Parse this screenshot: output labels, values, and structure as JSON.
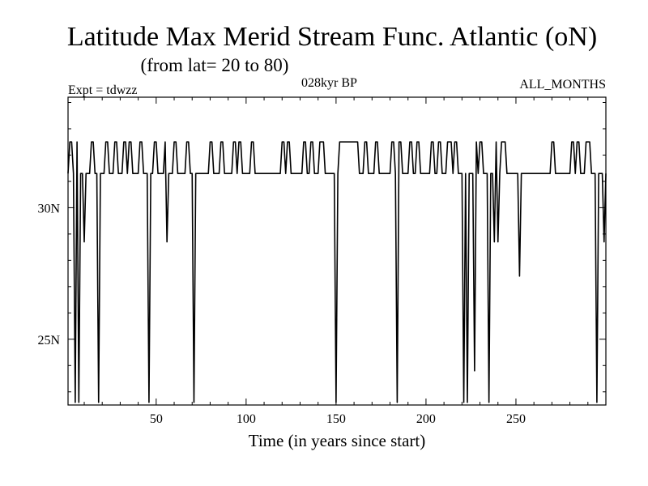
{
  "chart_data": {
    "type": "line",
    "title": "Latitude Max Merid Stream Func. Atlantic (oN)",
    "subtitle": "(from lat= 20 to 80)",
    "experiment_label": "Expt = tdwzz",
    "period_label": "028kyr BP",
    "season_label": "ALL_MONTHS",
    "xlabel": "Time (in years since start)",
    "ylabel": "",
    "xlim": [
      1,
      300
    ],
    "ylim": [
      22.5,
      34.2
    ],
    "x_ticks": [
      50,
      100,
      150,
      200,
      250
    ],
    "x_tick_labels": [
      "50",
      "100",
      "150",
      "200",
      "250"
    ],
    "y_ticks": [
      25,
      30
    ],
    "y_tick_labels": [
      "25N",
      "30N"
    ],
    "baseline": 31.3,
    "levels": [
      31.3,
      32.5
    ],
    "high_runs": [
      [
        2,
        3
      ],
      [
        6,
        7
      ],
      [
        14,
        15
      ],
      [
        22,
        23
      ],
      [
        27,
        28
      ],
      [
        32,
        33
      ],
      [
        35,
        36
      ],
      [
        41,
        42
      ],
      [
        49,
        50
      ],
      [
        55,
        56
      ],
      [
        60,
        61
      ],
      [
        67,
        68
      ],
      [
        80,
        81
      ],
      [
        86,
        87
      ],
      [
        93,
        94
      ],
      [
        96,
        97
      ],
      [
        103,
        104
      ],
      [
        120,
        121
      ],
      [
        123,
        124
      ],
      [
        132,
        133
      ],
      [
        136,
        137
      ],
      [
        141,
        143
      ],
      [
        152,
        162
      ],
      [
        166,
        167
      ],
      [
        172,
        173
      ],
      [
        181,
        182
      ],
      [
        185,
        186
      ],
      [
        191,
        192
      ],
      [
        195,
        196
      ],
      [
        203,
        204
      ],
      [
        207,
        208
      ],
      [
        212,
        214
      ],
      [
        216,
        217
      ],
      [
        227,
        228
      ],
      [
        230,
        231
      ],
      [
        238,
        239
      ],
      [
        242,
        244
      ],
      [
        270,
        271
      ],
      [
        281,
        282
      ],
      [
        284,
        285
      ],
      [
        289,
        291
      ]
    ],
    "dips": [
      [
        5,
        22.6
      ],
      [
        7,
        22.6
      ],
      [
        10,
        28.7
      ],
      [
        18,
        22.6
      ],
      [
        46,
        22.6
      ],
      [
        56,
        28.7
      ],
      [
        71,
        22.6
      ],
      [
        150,
        22.6
      ],
      [
        184,
        22.6
      ],
      [
        221,
        22.6
      ],
      [
        223,
        22.6
      ],
      [
        227,
        23.8
      ],
      [
        235,
        22.6
      ],
      [
        238,
        28.7
      ],
      [
        240,
        28.7
      ],
      [
        252,
        27.4
      ],
      [
        295,
        22.6
      ],
      [
        299,
        28.7
      ]
    ],
    "grid": false,
    "legend": "none"
  }
}
